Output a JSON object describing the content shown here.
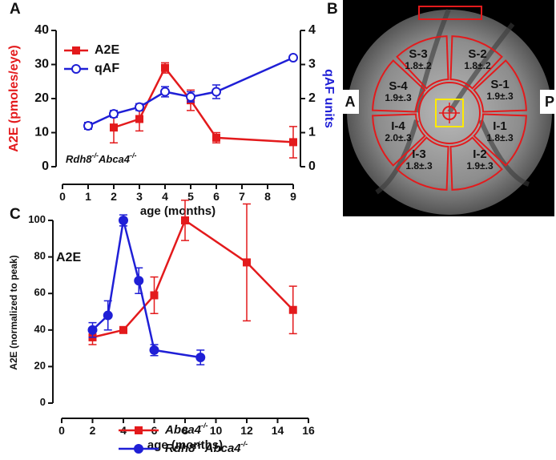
{
  "chart_data": [
    {
      "type": "line",
      "panel": "A",
      "xlabel": "age (months)",
      "ylabel": "A2E (pmoles/eye)",
      "y2label": "qAF units",
      "ylabel_color": "#e31a1c",
      "y2label_color": "#1f1fd6",
      "annotation": "Rdh8-/-Abca4-/-",
      "xlim": [
        0,
        9
      ],
      "xticks": [
        0,
        1,
        2,
        3,
        4,
        5,
        6,
        7,
        8,
        9
      ],
      "ylim": [
        0,
        40
      ],
      "yticks": [
        0,
        10,
        20,
        30,
        40
      ],
      "y2lim": [
        0,
        4
      ],
      "y2ticks": [
        0,
        1,
        2,
        3,
        4
      ],
      "series": [
        {
          "name": "A2E",
          "color": "#e31a1c",
          "marker": "square",
          "x": [
            2,
            3,
            4,
            5,
            6,
            9
          ],
          "values": [
            11.5,
            14,
            29,
            19.5,
            8.5,
            7.2
          ],
          "errors": [
            4.5,
            3.5,
            1.5,
            3,
            1.5,
            4.6
          ]
        },
        {
          "name": "qAF",
          "color": "#1f1fd6",
          "marker": "open-circle",
          "axis": "y2",
          "x": [
            1,
            2,
            3,
            4,
            5,
            6,
            9
          ],
          "values": [
            1.2,
            1.55,
            1.75,
            2.2,
            2.05,
            2.2,
            3.2
          ],
          "errors": [
            0.1,
            0.1,
            0.1,
            0.15,
            0.15,
            0.2,
            0.05
          ]
        }
      ]
    },
    {
      "type": "line",
      "panel": "C",
      "annotation": "A2E",
      "xlabel": "age (months)",
      "ylabel": "A2E  (normalized to peak)",
      "xlim": [
        0,
        16
      ],
      "xticks": [
        0,
        2,
        4,
        6,
        8,
        10,
        12,
        14,
        16
      ],
      "ylim": [
        0,
        100
      ],
      "yticks": [
        0,
        20,
        40,
        60,
        80,
        100
      ],
      "series": [
        {
          "name": "Abca4-/-",
          "color": "#e31a1c",
          "marker": "square",
          "x": [
            2,
            4,
            6,
            8,
            12,
            15
          ],
          "values": [
            36,
            40,
            59,
            100,
            77,
            51
          ],
          "errors": [
            4,
            1,
            10,
            11,
            32,
            13
          ]
        },
        {
          "name": "Rdh8-/- Abca4-/-",
          "color": "#1f1fd6",
          "marker": "circle",
          "x": [
            2,
            3,
            4,
            5,
            6,
            9
          ],
          "values": [
            40,
            48,
            100,
            67,
            29,
            25
          ],
          "errors": [
            4,
            8,
            3,
            7,
            3,
            4
          ]
        }
      ]
    }
  ],
  "fundus": {
    "panel": "B",
    "left_label": "A",
    "right_label": "P",
    "regions": [
      {
        "name": "S-2",
        "value": "1.8±.2"
      },
      {
        "name": "S-1",
        "value": "1.9±.3"
      },
      {
        "name": "I-1",
        "value": "1.8±.3"
      },
      {
        "name": "I-2",
        "value": "1.9±.3"
      },
      {
        "name": "I-3",
        "value": "1.8±.3"
      },
      {
        "name": "I-4",
        "value": "2.0±.3"
      },
      {
        "name": "S-4",
        "value": "1.9±.3"
      },
      {
        "name": "S-3",
        "value": "1.8±.2"
      }
    ]
  }
}
